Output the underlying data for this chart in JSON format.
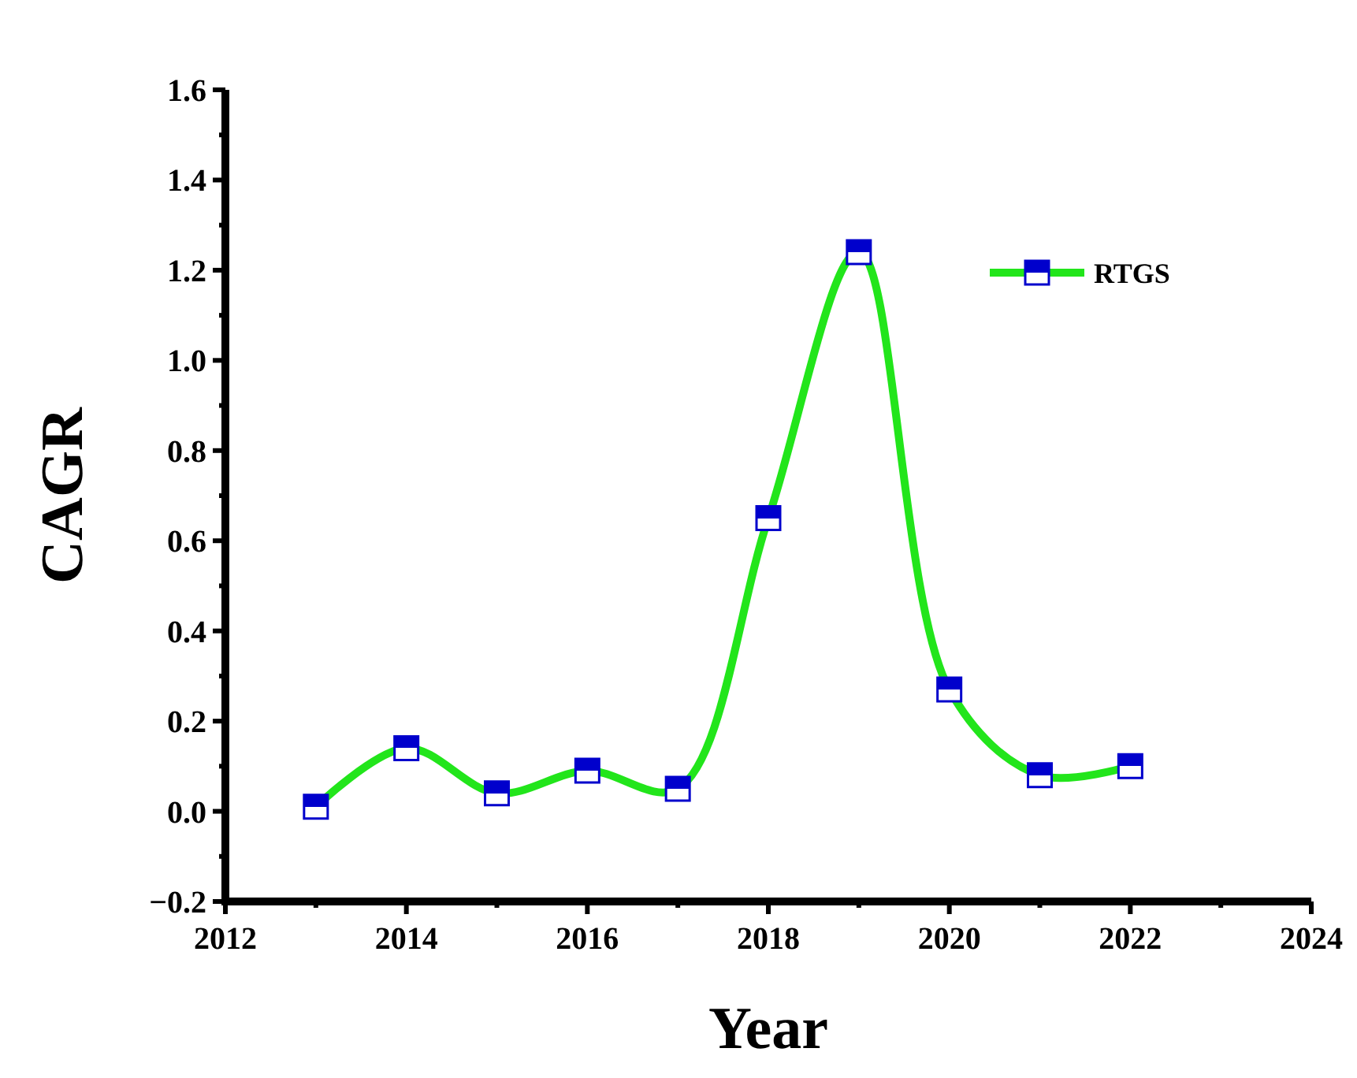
{
  "chart_data": {
    "type": "line",
    "xlabel": "Year",
    "ylabel": "CAGR",
    "x": [
      2013,
      2014,
      2015,
      2016,
      2017,
      2018,
      2019,
      2020,
      2021,
      2022
    ],
    "series": [
      {
        "name": "RTGS",
        "color": "#22e51b",
        "values": [
          0.01,
          0.14,
          0.04,
          0.09,
          0.05,
          0.65,
          1.24,
          0.27,
          0.08,
          0.1
        ]
      }
    ],
    "xlim": [
      2012,
      2024
    ],
    "xticks": [
      2012,
      {
        "value": 2013,
        "label": null
      },
      2014,
      {
        "value": 2015,
        "label": null
      },
      2016,
      {
        "value": 2017,
        "label": null
      },
      2018,
      {
        "value": 2019,
        "label": null
      },
      2020,
      {
        "value": 2021,
        "label": null
      },
      2022,
      {
        "value": 2023,
        "label": null
      },
      2024
    ],
    "ylim": [
      -0.2,
      1.6
    ],
    "yticks": [
      {
        "value": -0.2,
        "label": "−0.2"
      },
      {
        "value": -0.1,
        "label": null
      },
      {
        "value": 0,
        "label": "0.0"
      },
      {
        "value": 0.1,
        "label": null
      },
      {
        "value": 0.2,
        "label": "0.2"
      },
      {
        "value": 0.3,
        "label": null
      },
      {
        "value": 0.4,
        "label": "0.4"
      },
      {
        "value": 0.5,
        "label": null
      },
      {
        "value": 0.6,
        "label": "0.6"
      },
      {
        "value": 0.7,
        "label": null
      },
      {
        "value": 0.8,
        "label": "0.8"
      },
      {
        "value": 0.9,
        "label": null
      },
      {
        "value": 1.0,
        "label": "1.0"
      },
      {
        "value": 1.1,
        "label": null
      },
      {
        "value": 1.2,
        "label": "1.2"
      },
      {
        "value": 1.3,
        "label": null
      },
      {
        "value": 1.4,
        "label": "1.4"
      },
      {
        "value": 1.5,
        "label": null
      },
      {
        "value": 1.6,
        "label": "1.6"
      }
    ],
    "marker": "square",
    "line_style": "solid",
    "grid": false,
    "legend": "top right"
  }
}
